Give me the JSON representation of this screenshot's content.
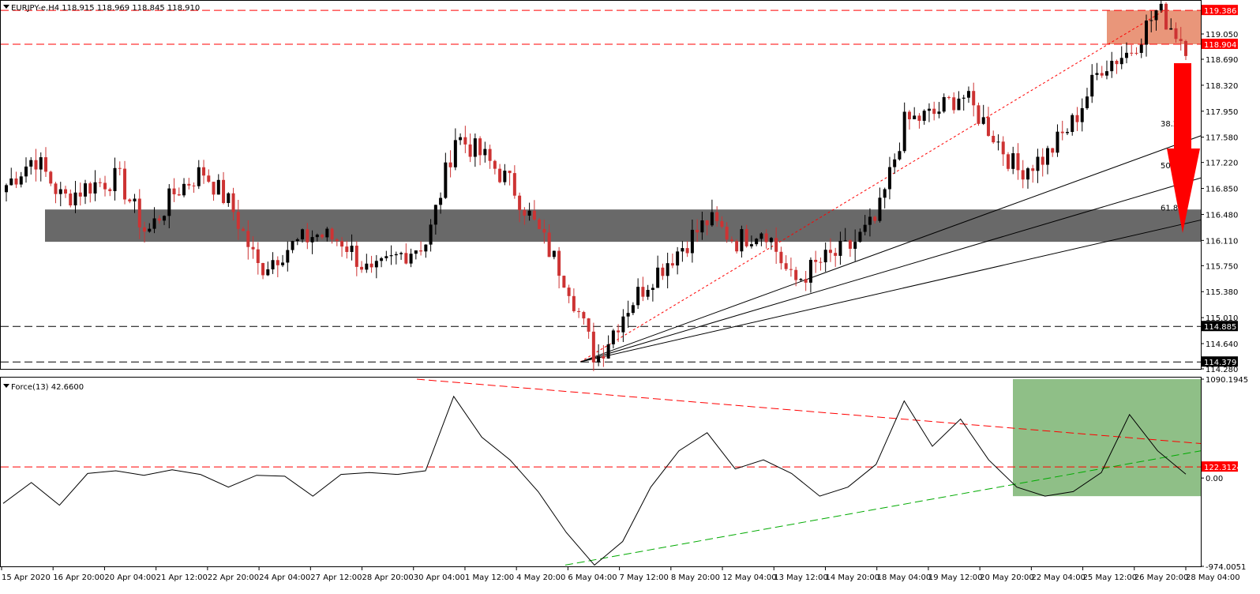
{
  "chart_data": {
    "type": "candlestick",
    "symbol_header": "EURJPY-e,H4  118.915 118.969 118.845 118.910",
    "ohlc_current": {
      "open": 118.915,
      "high": 118.969,
      "low": 118.845,
      "close": 118.91
    },
    "price_axis": {
      "ylim": [
        114.28,
        119.5
      ],
      "ticks": [
        "119.050",
        "118.690",
        "118.320",
        "117.950",
        "117.580",
        "117.220",
        "116.850",
        "116.480",
        "116.110",
        "115.750",
        "115.380",
        "115.010",
        "114.640",
        "114.280"
      ]
    },
    "price_levels": [
      {
        "value": 119.386,
        "label": "119.386",
        "style": "dashed",
        "color": "#ff0000"
      },
      {
        "value": 118.904,
        "label": "118.904",
        "style": "dashed",
        "color": "#ff0000"
      },
      {
        "value": 114.885,
        "label": "114.885",
        "style": "dashed",
        "color": "#000000"
      },
      {
        "value": 114.379,
        "label": "114.379",
        "style": "dashed",
        "color": "#000000"
      }
    ],
    "zones": [
      {
        "name": "resistance-zone",
        "from": 118.904,
        "to": 119.386,
        "color": "#e9967a"
      },
      {
        "name": "support-zone",
        "from": 116.09,
        "to": 116.55,
        "color": "#696969"
      }
    ],
    "fibonacci_fan": {
      "levels": [
        "38.2",
        "50.0",
        "61.8"
      ],
      "anchor_time": "6 May 04:00",
      "anchor_price": 114.379
    },
    "x_labels": [
      "15 Apr 2020",
      "16 Apr 20:00",
      "20 Apr 04:00",
      "21 Apr 12:00",
      "22 Apr 20:00",
      "24 Apr 04:00",
      "27 Apr 12:00",
      "28 Apr 20:00",
      "30 Apr 04:00",
      "1 May 12:00",
      "4 May 20:00",
      "6 May 04:00",
      "7 May 12:00",
      "8 May 20:00",
      "12 May 04:00",
      "13 May 12:00",
      "14 May 20:00",
      "18 May 04:00",
      "19 May 12:00",
      "20 May 20:00",
      "22 May 04:00",
      "25 May 12:00",
      "26 May 20:00",
      "28 May 04:00"
    ],
    "price_path": [
      116.9,
      117.3,
      116.7,
      116.9,
      117.0,
      116.2,
      116.8,
      117.1,
      116.6,
      115.7,
      116.0,
      116.2,
      116.1,
      115.6,
      115.9,
      116.1,
      117.6,
      117.3,
      116.9,
      116.2,
      115.5,
      114.4,
      115.1,
      115.6,
      116.0,
      116.4,
      116.1,
      116.3,
      115.5,
      115.8,
      116.0,
      116.4,
      117.8,
      117.9,
      118.2,
      117.7,
      117.1,
      117.3,
      117.8,
      118.6,
      118.8,
      119.4,
      118.9
    ],
    "series": [
      {
        "name": "Force(13) 42.6600",
        "values": [
          -280,
          -50,
          -300,
          50,
          80,
          30,
          90,
          40,
          -100,
          30,
          20,
          -200,
          40,
          60,
          40,
          80,
          900,
          450,
          200,
          -150,
          -600,
          -960,
          -700,
          -100,
          300,
          500,
          100,
          200,
          50,
          -200,
          -100,
          150,
          850,
          350,
          650,
          200,
          -100,
          -200,
          -150,
          60,
          700,
          300,
          42.66
        ]
      }
    ],
    "force_axis": {
      "ticks": [
        "1090.1945",
        "122.3124",
        "0.00",
        "-974.0051"
      ],
      "ylim": [
        -974.0051,
        1090.1945
      ]
    },
    "force_levels": [
      {
        "value": 122.3124,
        "label": "122.3124",
        "color": "#ff0000"
      }
    ],
    "colors": {
      "bull": "#000000",
      "bear": "#cd3333",
      "arrow": "#ff0000",
      "green_zone": "#8fbf87",
      "green_trend": "#00aa00",
      "red_trend": "#ff0000"
    }
  }
}
